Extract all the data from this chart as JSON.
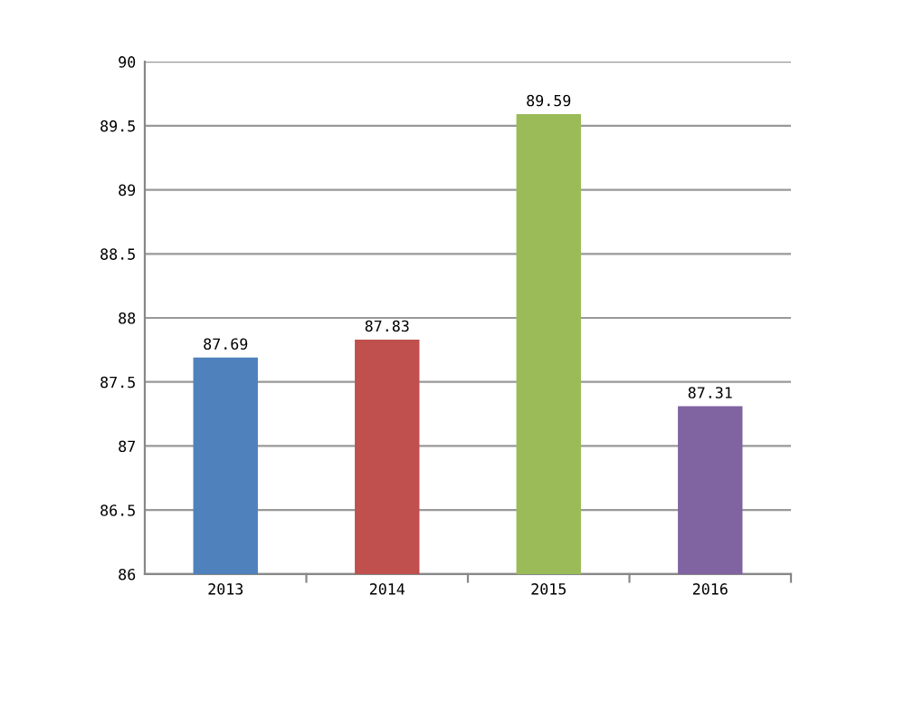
{
  "chart_data": {
    "type": "bar",
    "categories": [
      "2013",
      "2014",
      "2015",
      "2016"
    ],
    "values": [
      87.69,
      87.83,
      89.59,
      87.31
    ],
    "colors": [
      "#4f81bd",
      "#c0504d",
      "#9bbb59",
      "#8064a2"
    ],
    "ylim": [
      86,
      90
    ],
    "yticks": [
      86,
      86.5,
      87,
      87.5,
      88,
      88.5,
      89,
      89.5,
      90
    ],
    "grid": "y",
    "data_labels": true
  }
}
